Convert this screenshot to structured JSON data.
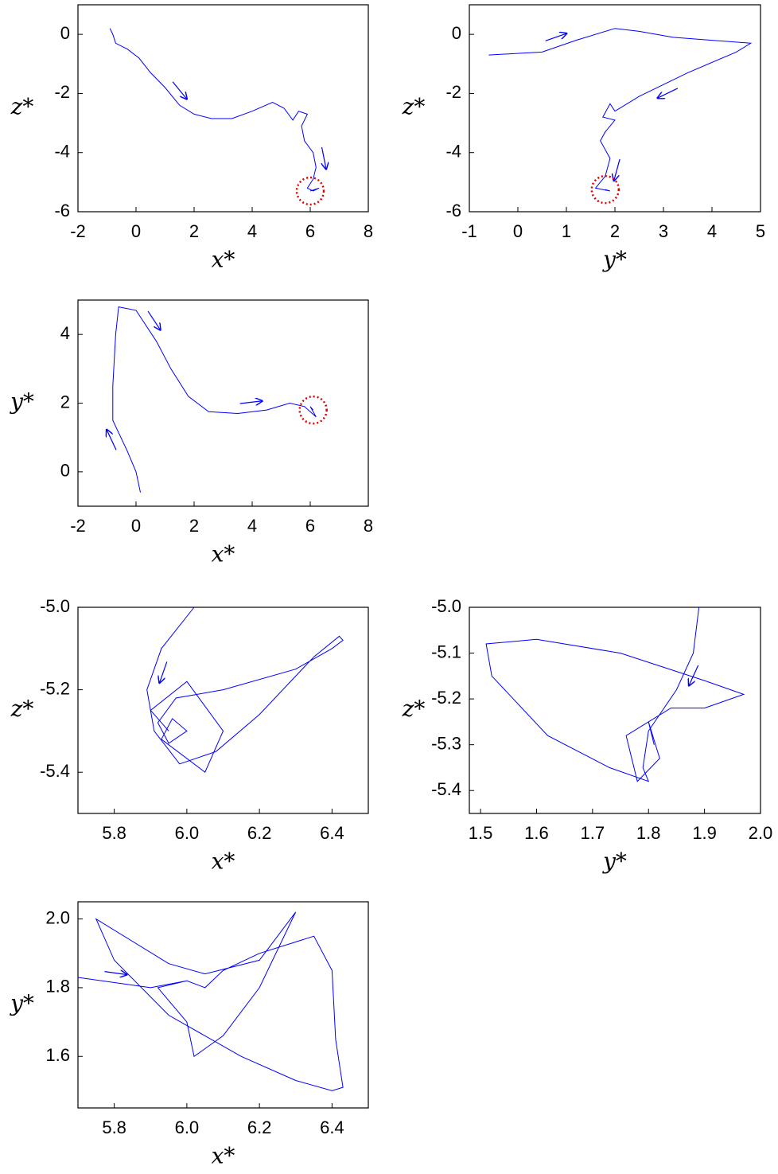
{
  "chart_data": [
    {
      "type": "line",
      "x_label": "x*",
      "y_label": "z*",
      "color": "#0000ff",
      "xlim": [
        -2,
        8
      ],
      "ylim": [
        -6,
        1
      ],
      "xticks": [
        -2,
        0,
        2,
        4,
        6,
        8
      ],
      "yticks": [
        -6,
        -4,
        -2,
        0
      ],
      "x": [
        -0.9,
        -0.8,
        -0.7,
        -0.3,
        0.1,
        0.5,
        1,
        1.5,
        2,
        2.6,
        3.3,
        4,
        4.7,
        5.1,
        5.4,
        5.6,
        5.9,
        5.7,
        5.8,
        6.1,
        6.2,
        6.1,
        5.9,
        6.1,
        6.3,
        6.0
      ],
      "values": [
        0.2,
        0,
        -0.3,
        -0.5,
        -0.8,
        -1.3,
        -1.8,
        -2.4,
        -2.7,
        -2.85,
        -2.85,
        -2.6,
        -2.3,
        -2.5,
        -2.9,
        -2.6,
        -2.7,
        -3.1,
        -3.6,
        -4.0,
        -4.5,
        -4.9,
        -5.2,
        -5.3,
        -5.2,
        -5.3
      ]
    },
    {
      "type": "line",
      "x_label": "y*",
      "y_label": "z*",
      "color": "#0000ff",
      "xlim": [
        -1,
        5
      ],
      "ylim": [
        -6,
        1
      ],
      "xticks": [
        -1,
        0,
        1,
        2,
        3,
        4,
        5
      ],
      "yticks": [
        -6,
        -4,
        -2,
        0
      ],
      "x": [
        -0.6,
        0.5,
        1.2,
        2,
        2.5,
        3.2,
        4,
        4.8,
        4.5,
        3.5,
        2.5,
        2,
        1.9,
        1.75,
        2,
        1.8,
        1.7,
        1.9,
        1.8,
        1.6,
        1.9,
        1.8
      ],
      "values": [
        -0.7,
        -0.6,
        -0.2,
        0.2,
        0.1,
        -0.1,
        -0.2,
        -0.3,
        -0.6,
        -1.3,
        -2.1,
        -2.6,
        -2.35,
        -2.8,
        -2.9,
        -3.3,
        -3.6,
        -4.2,
        -4.8,
        -5.2,
        -5.3,
        -5.25
      ]
    },
    {
      "type": "line",
      "x_label": "x*",
      "y_label": "y*",
      "color": "#0000ff",
      "xlim": [
        -2,
        8
      ],
      "ylim": [
        -1,
        5
      ],
      "xticks": [
        -2,
        0,
        2,
        4,
        6,
        8
      ],
      "yticks": [
        0,
        2,
        4
      ],
      "x": [
        0.15,
        0,
        -0.3,
        -0.8,
        -0.8,
        -0.7,
        -0.6,
        0,
        0.7,
        1.2,
        1.8,
        2.5,
        3.5,
        4.5,
        5.3,
        5.8,
        6.2,
        6.0,
        6.1
      ],
      "values": [
        -0.6,
        0,
        0.6,
        1.5,
        2.5,
        4,
        4.8,
        4.7,
        3.8,
        3,
        2.2,
        1.75,
        1.7,
        1.8,
        2.0,
        1.9,
        1.6,
        1.9,
        1.8
      ]
    },
    {
      "type": "line",
      "x_label": "x*",
      "y_label": "z*",
      "color": "#0000ff",
      "xlim": [
        5.7,
        6.5
      ],
      "ylim": [
        -5.5,
        -5.0
      ],
      "xticks": [
        5.8,
        {
          "value": 6,
          "label": "6.0"
        },
        6.2,
        6.4
      ],
      "yticks": [
        -5.4,
        -5.2,
        {
          "value": -5,
          "label": "-5.0"
        }
      ],
      "x": [
        6.02,
        5.93,
        5.89,
        5.91,
        5.98,
        6.08,
        6.2,
        6.35,
        6.42,
        6.43,
        6.4,
        6.3,
        6.1,
        5.97,
        5.92,
        5.95,
        6.0,
        5.96,
        5.93,
        6.05,
        6.1,
        6.0,
        5.9,
        5.95
      ],
      "values": [
        -5.0,
        -5.1,
        -5.2,
        -5.3,
        -5.38,
        -5.35,
        -5.26,
        -5.12,
        -5.07,
        -5.08,
        -5.1,
        -5.15,
        -5.2,
        -5.22,
        -5.28,
        -5.33,
        -5.3,
        -5.27,
        -5.32,
        -5.4,
        -5.3,
        -5.18,
        -5.25,
        -5.3
      ]
    },
    {
      "type": "line",
      "x_label": "y*",
      "y_label": "z*",
      "color": "#0000ff",
      "xlim": [
        1.48,
        2.0
      ],
      "ylim": [
        -5.45,
        -5.0
      ],
      "xticks": [
        1.5,
        1.6,
        1.7,
        1.8,
        1.9,
        {
          "value": 2,
          "label": "2.0"
        }
      ],
      "yticks": [
        -5.4,
        -5.3,
        -5.2,
        -5.1,
        {
          "value": -5,
          "label": "-5.0"
        }
      ],
      "x": [
        1.89,
        1.88,
        1.85,
        1.8,
        1.79,
        1.8,
        1.73,
        1.62,
        1.52,
        1.51,
        1.6,
        1.75,
        1.9,
        1.97,
        1.9,
        1.84,
        1.8,
        1.76,
        1.78,
        1.82,
        1.8,
        1.81
      ],
      "values": [
        -5.0,
        -5.1,
        -5.18,
        -5.27,
        -5.35,
        -5.38,
        -5.35,
        -5.28,
        -5.15,
        -5.08,
        -5.07,
        -5.1,
        -5.16,
        -5.19,
        -5.22,
        -5.22,
        -5.25,
        -5.28,
        -5.38,
        -5.33,
        -5.25,
        -5.3
      ]
    },
    {
      "type": "line",
      "x_label": "x*",
      "y_label": "y*",
      "color": "#0000ff",
      "xlim": [
        5.7,
        6.5
      ],
      "ylim": [
        1.45,
        2.05
      ],
      "xticks": [
        5.8,
        {
          "value": 6,
          "label": "6.0"
        },
        6.2,
        6.4
      ],
      "yticks": [
        1.6,
        1.8,
        {
          "value": 2,
          "label": "2.0"
        }
      ],
      "x": [
        5.7,
        5.9,
        6.0,
        6.05,
        6.1,
        6.2,
        6.35,
        6.4,
        6.41,
        6.43,
        6.4,
        6.3,
        6.15,
        5.95,
        5.8,
        5.75,
        5.95,
        6.05,
        6.2,
        6.3,
        6.2,
        6.1,
        6.02,
        6.0,
        5.92,
        6.0
      ],
      "values": [
        1.83,
        1.8,
        1.82,
        1.8,
        1.85,
        1.9,
        1.95,
        1.85,
        1.65,
        1.51,
        1.5,
        1.53,
        1.6,
        1.72,
        1.88,
        2.0,
        1.87,
        1.84,
        1.88,
        2.02,
        1.8,
        1.66,
        1.6,
        1.7,
        1.8,
        1.82
      ]
    }
  ]
}
